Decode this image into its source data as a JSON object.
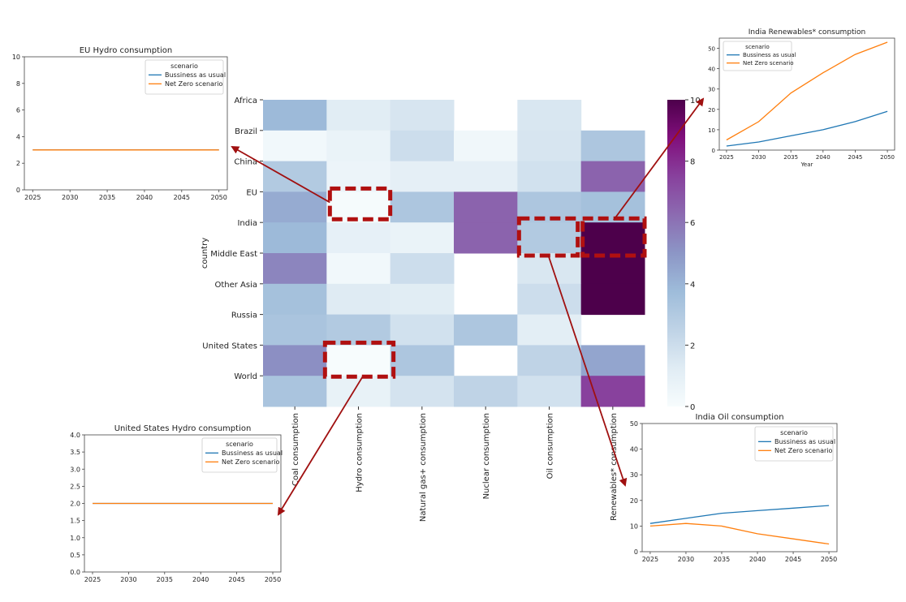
{
  "chart_data": [
    {
      "id": "heatmap",
      "type": "heatmap",
      "ylabel": "country",
      "rows": [
        "Africa",
        "Brazil",
        "China",
        "EU",
        "India",
        "Middle East",
        "Other Asia",
        "Russia",
        "United States",
        "World"
      ],
      "columns": [
        "Coal consumption",
        "Hydro consumption",
        "Natural gas+ consumption",
        "Nuclear consumption",
        "Oil consumption",
        "Renewables* consumption"
      ],
      "values": [
        [
          3.8,
          1.2,
          1.6,
          null,
          1.5,
          null
        ],
        [
          0.3,
          0.7,
          2.0,
          0.4,
          1.6,
          3.2
        ],
        [
          3.0,
          0.6,
          1.0,
          1.0,
          1.8,
          6.5
        ],
        [
          4.3,
          0.1,
          3.2,
          6.5,
          3.2,
          3.5
        ],
        [
          3.8,
          0.9,
          0.7,
          6.5,
          3.0,
          10.0
        ],
        [
          5.5,
          0.3,
          2.0,
          null,
          1.5,
          10.0
        ],
        [
          3.5,
          1.3,
          1.2,
          null,
          2.0,
          10.0
        ],
        [
          3.3,
          3.0,
          1.8,
          3.2,
          1.1,
          null
        ],
        [
          5.2,
          0.0,
          3.2,
          null,
          2.5,
          4.5
        ],
        [
          3.3,
          0.8,
          1.7,
          2.5,
          1.8,
          7.5
        ]
      ],
      "colorbar": {
        "min": 0,
        "max": 10,
        "ticks": [
          0,
          2,
          4,
          6,
          8,
          10
        ]
      },
      "highlighted_cells": [
        {
          "row": "EU",
          "column": "Hydro consumption"
        },
        {
          "row": "India",
          "column": "Oil consumption"
        },
        {
          "row": "India",
          "column": "Renewables* consumption"
        },
        {
          "row": "United States",
          "column": "Hydro consumption"
        }
      ]
    },
    {
      "id": "eu-hydro",
      "type": "line",
      "title": "EU Hydro consumption",
      "x": [
        2025,
        2030,
        2035,
        2040,
        2045,
        2050
      ],
      "xticks": [
        2025,
        2030,
        2035,
        2040,
        2045,
        2050
      ],
      "ylim": [
        0,
        10
      ],
      "yticks": [
        0,
        2,
        4,
        6,
        8,
        10
      ],
      "ytick_labels": [
        "0",
        "2",
        "4",
        "6",
        "8",
        "10"
      ],
      "xlabel": "",
      "legend_title": "scenario",
      "legend_position": "top-right",
      "series": [
        {
          "name": "Bussiness as usual",
          "color": "#1f77b4",
          "values": [
            3,
            3,
            3,
            3,
            3,
            3
          ]
        },
        {
          "name": "Net Zero scenario",
          "color": "#ff7f0e",
          "values": [
            3,
            3,
            3,
            3,
            3,
            3
          ]
        }
      ]
    },
    {
      "id": "india-renewables",
      "type": "line",
      "title": "India Renewables* consumption",
      "x": [
        2025,
        2030,
        2035,
        2040,
        2045,
        2050
      ],
      "xticks": [
        2025,
        2030,
        2035,
        2040,
        2045,
        2050
      ],
      "ylim": [
        0,
        55
      ],
      "yticks": [
        0,
        10,
        20,
        30,
        40,
        50
      ],
      "ytick_labels": [
        "0",
        "10",
        "20",
        "30",
        "40",
        "50"
      ],
      "xlabel": "Year",
      "legend_title": "scenario",
      "legend_position": "top-left",
      "series": [
        {
          "name": "Bussiness as usual",
          "color": "#1f77b4",
          "values": [
            2,
            4,
            7,
            10,
            14,
            19
          ]
        },
        {
          "name": "Net Zero scenario",
          "color": "#ff7f0e",
          "values": [
            5,
            14,
            28,
            38,
            47,
            53
          ]
        }
      ]
    },
    {
      "id": "us-hydro",
      "type": "line",
      "title": "United States Hydro consumption",
      "x": [
        2025,
        2030,
        2035,
        2040,
        2045,
        2050
      ],
      "xticks": [
        2025,
        2030,
        2035,
        2040,
        2045,
        2050
      ],
      "ylim": [
        0,
        4
      ],
      "yticks": [
        0,
        0.5,
        1,
        1.5,
        2,
        2.5,
        3,
        3.5,
        4
      ],
      "ytick_labels": [
        "0.0",
        "0.5",
        "1.0",
        "1.5",
        "2.0",
        "2.5",
        "3.0",
        "3.5",
        "4.0"
      ],
      "xlabel": "",
      "legend_title": "scenario",
      "legend_position": "top-right",
      "series": [
        {
          "name": "Bussiness as usual",
          "color": "#1f77b4",
          "values": [
            2,
            2,
            2,
            2,
            2,
            2
          ]
        },
        {
          "name": "Net Zero scenario",
          "color": "#ff7f0e",
          "values": [
            2,
            2,
            2,
            2,
            2,
            2
          ]
        }
      ]
    },
    {
      "id": "india-oil",
      "type": "line",
      "title": "India Oil consumption",
      "x": [
        2025,
        2030,
        2035,
        2040,
        2045,
        2050
      ],
      "xticks": [
        2025,
        2030,
        2035,
        2040,
        2045,
        2050
      ],
      "ylim": [
        0,
        50
      ],
      "yticks": [
        0,
        10,
        20,
        30,
        40,
        50
      ],
      "ytick_labels": [
        "0",
        "10",
        "20",
        "30",
        "40",
        "50"
      ],
      "xlabel": "",
      "legend_title": "scenario",
      "legend_position": "top-right",
      "series": [
        {
          "name": "Bussiness as usual",
          "color": "#1f77b4",
          "values": [
            11,
            13,
            15,
            16,
            17,
            18
          ]
        },
        {
          "name": "Net Zero scenario",
          "color": "#ff7f0e",
          "values": [
            10,
            11,
            10,
            7,
            5,
            3
          ]
        }
      ]
    }
  ],
  "colors": {
    "highlight": "#b01010",
    "arrow": "#a01010",
    "cmap": [
      "#f7fcfd",
      "#e0ecf4",
      "#bfd3e6",
      "#9ebcda",
      "#8c96c6",
      "#8c6bb1",
      "#88419d",
      "#810f7c",
      "#4d004b"
    ]
  }
}
